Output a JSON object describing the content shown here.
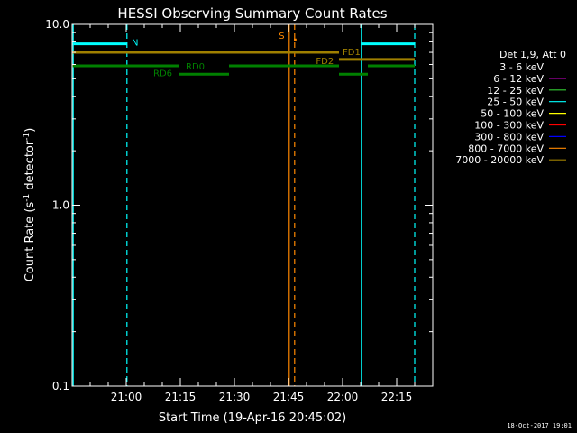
{
  "chart_data": {
    "type": "line",
    "title": "HESSI Observing Summary Count Rates",
    "xlabel": "Start Time (19-Apr-16 20:45:02)",
    "ylabel_prefix": "Count Rate (s",
    "ylabel_sup1": "-1",
    "ylabel_mid": " detector",
    "ylabel_sup2": "-1",
    "ylabel_suffix": ")",
    "y_scale": "log",
    "ylim": [
      0.1,
      10.0
    ],
    "yticks": [
      {
        "value": 0.1,
        "label": "0.1"
      },
      {
        "value": 1.0,
        "label": "1.0"
      },
      {
        "value": 10.0,
        "label": "10.0"
      }
    ],
    "xlim_minutes": [
      0,
      100
    ],
    "xticks": [
      {
        "minute": 15,
        "label": "21:00"
      },
      {
        "minute": 30,
        "label": "21:15"
      },
      {
        "minute": 45,
        "label": "21:30"
      },
      {
        "minute": 60,
        "label": "21:45"
      },
      {
        "minute": 75,
        "label": "22:00"
      },
      {
        "minute": 90,
        "label": "22:15"
      }
    ],
    "legend": {
      "title": "Det 1,9, Att 0",
      "placement": "right",
      "entries": [
        {
          "label": "3 - 6 keV",
          "color": "#000000"
        },
        {
          "label": "6 - 12 keV",
          "color": "#cc00cc"
        },
        {
          "label": "12 - 25 keV",
          "color": "#33cc33"
        },
        {
          "label": "25 - 50 keV",
          "color": "#00ffff"
        },
        {
          "label": "50 - 100 keV",
          "color": "#ffff00"
        },
        {
          "label": "100 - 300 keV",
          "color": "#ff0000"
        },
        {
          "label": "300 - 800 keV",
          "color": "#0000ff"
        },
        {
          "label": "800 - 7000 keV",
          "color": "#ff8800"
        },
        {
          "label": "7000 - 20000 keV",
          "color": "#a08000"
        }
      ]
    },
    "flag_segments": [
      {
        "name": "N",
        "color": "#00ffff",
        "y": 7.8,
        "segments": [
          [
            0,
            15.2
          ],
          [
            80,
            95
          ]
        ]
      },
      {
        "name": "S",
        "color": "#ff8800",
        "y": 8.2,
        "segments": [
          [
            61.5,
            62.2
          ]
        ]
      },
      {
        "name": "FD1",
        "color": "#a08000",
        "y": 7.0,
        "segments": [
          [
            0,
            74
          ]
        ]
      },
      {
        "name": "FD2",
        "color": "#a08000",
        "y": 6.4,
        "segments": [
          [
            74,
            95
          ]
        ]
      },
      {
        "name": "RD0",
        "color": "#008000",
        "y": 5.9,
        "segments": [
          [
            0,
            29.5
          ],
          [
            43.5,
            74
          ],
          [
            82,
            95
          ]
        ]
      },
      {
        "name": "RD6",
        "color": "#008000",
        "y": 5.3,
        "segments": [
          [
            29.5,
            43.5
          ],
          [
            74,
            82
          ]
        ]
      }
    ],
    "vertical_lines": [
      {
        "minute": 0.3,
        "color": "#00ffff",
        "dashed": false
      },
      {
        "minute": 15.2,
        "color": "#00ffff",
        "dashed": true
      },
      {
        "minute": 60.2,
        "color": "#ff8800",
        "dashed": false
      },
      {
        "minute": 61.7,
        "color": "#ff8800",
        "dashed": true
      },
      {
        "minute": 80.2,
        "color": "#00ffff",
        "dashed": false
      },
      {
        "minute": 95,
        "color": "#00ffff",
        "dashed": true
      }
    ],
    "flag_labels": [
      {
        "text": "N",
        "color": "#00ffff",
        "minute": 16.5,
        "y": 8.0
      },
      {
        "text": "S",
        "color": "#ff8800",
        "minute": 57.3,
        "y": 8.7
      },
      {
        "text": "FD1",
        "color": "#a08000",
        "minute": 75,
        "y": 7.1
      },
      {
        "text": "FD2",
        "color": "#a08000",
        "minute": 67.6,
        "y": 6.3
      },
      {
        "text": "RD0",
        "color": "#008000",
        "minute": 31.5,
        "y": 5.9
      },
      {
        "text": "RD6",
        "color": "#008000",
        "minute": 22.5,
        "y": 5.4
      }
    ]
  },
  "footer_timestamp": "18-Oct-2017 19:01"
}
